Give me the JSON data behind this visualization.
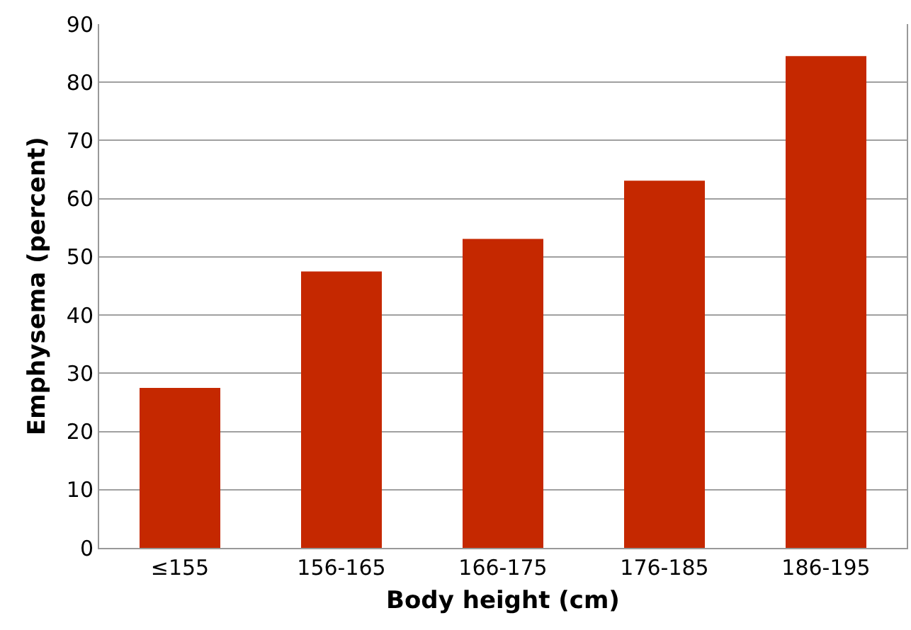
{
  "chart_data": {
    "type": "bar",
    "xlabel": "Body height (cm)",
    "ylabel": "Emphysema (percent)",
    "categories": [
      "≤155",
      "156-165",
      "166-175",
      "176-185",
      "186-195"
    ],
    "values": [
      27.5,
      47.5,
      53.1,
      63.1,
      84.5
    ],
    "color": "#c52800",
    "ylim": [
      0,
      90
    ],
    "yticks": [
      0,
      10,
      20,
      30,
      40,
      50,
      60,
      70,
      80,
      90
    ],
    "grid": "y"
  }
}
